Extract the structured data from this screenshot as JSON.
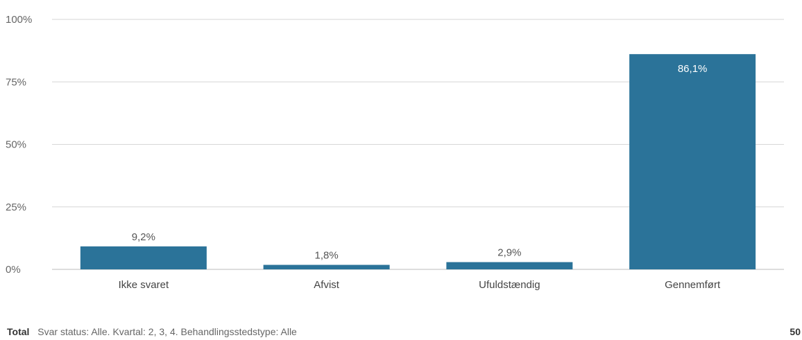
{
  "chart_data": {
    "type": "bar",
    "categories": [
      "Ikke svaret",
      "Afvist",
      "Ufuldstændig",
      "Gennemført"
    ],
    "values": [
      9.2,
      1.8,
      2.9,
      86.1
    ],
    "value_labels": [
      "9,2%",
      "1,8%",
      "2,9%",
      "86,1%"
    ],
    "y_ticks": [
      0,
      25,
      50,
      75,
      100
    ],
    "y_tick_labels": [
      "0%",
      "25%",
      "50%",
      "75%",
      "100%"
    ],
    "ylim": [
      0,
      100
    ],
    "grid": true,
    "bar_color": "#2b7399"
  },
  "footer": {
    "total_label": "Total",
    "filters": "Svar status: Alle. Kvartal: 2, 3, 4. Behandlingsstedstype: Alle",
    "right_value": "50"
  }
}
